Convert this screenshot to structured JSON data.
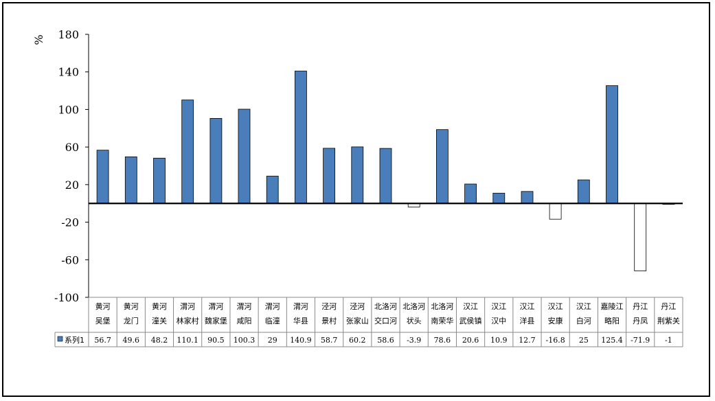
{
  "chart_data": {
    "type": "bar",
    "ylabel": "%",
    "ylim": [
      -100,
      180
    ],
    "yticks": [
      "180",
      "140",
      "100",
      "60",
      "20",
      "-20",
      "-60",
      "-100"
    ],
    "ytick_values": [
      180,
      140,
      100,
      60,
      20,
      -20,
      -60,
      -100
    ],
    "baseline": 0,
    "categories": [
      [
        "黄河",
        "吴堡"
      ],
      [
        "黄河",
        "龙门"
      ],
      [
        "黄河",
        "潼关"
      ],
      [
        "渭河",
        "林家村"
      ],
      [
        "渭河",
        "魏家堡"
      ],
      [
        "渭河",
        "咸阳"
      ],
      [
        "渭河",
        "临潼"
      ],
      [
        "渭河",
        "华县"
      ],
      [
        "泾河",
        "景村"
      ],
      [
        "泾河",
        "张家山"
      ],
      [
        "北洛河",
        "交口河"
      ],
      [
        "北洛河",
        "状头"
      ],
      [
        "北洛河",
        "南荣华"
      ],
      [
        "汉江",
        "武侯镇"
      ],
      [
        "汉江",
        "汉中"
      ],
      [
        "汉江",
        "洋县"
      ],
      [
        "汉江",
        "安康"
      ],
      [
        "汉江",
        "白河"
      ],
      [
        "嘉陵江",
        "略阳"
      ],
      [
        "丹江",
        "丹凤"
      ],
      [
        "丹江",
        "荆紫关"
      ]
    ],
    "series": [
      {
        "name": "系列1",
        "values": [
          56.7,
          49.6,
          48.2,
          110.1,
          90.5,
          100.3,
          29,
          140.9,
          58.7,
          60.2,
          58.6,
          -3.9,
          78.6,
          20.6,
          10.9,
          12.7,
          -16.8,
          25,
          125.4,
          -71.9,
          -1
        ],
        "value_labels": [
          "56.7",
          "49.6",
          "48.2",
          "110.1",
          "90.5",
          "100.3",
          "29",
          "140.9",
          "58.7",
          "60.2",
          "58.6",
          "-3.9",
          "78.6",
          "20.6",
          "10.9",
          "12.7",
          "-16.8",
          "25",
          "125.4",
          "-71.9",
          "-1"
        ],
        "positive_color": "#4a7ebb",
        "negative_color": "#ffffff"
      }
    ],
    "legend": "data table",
    "grid": false
  }
}
